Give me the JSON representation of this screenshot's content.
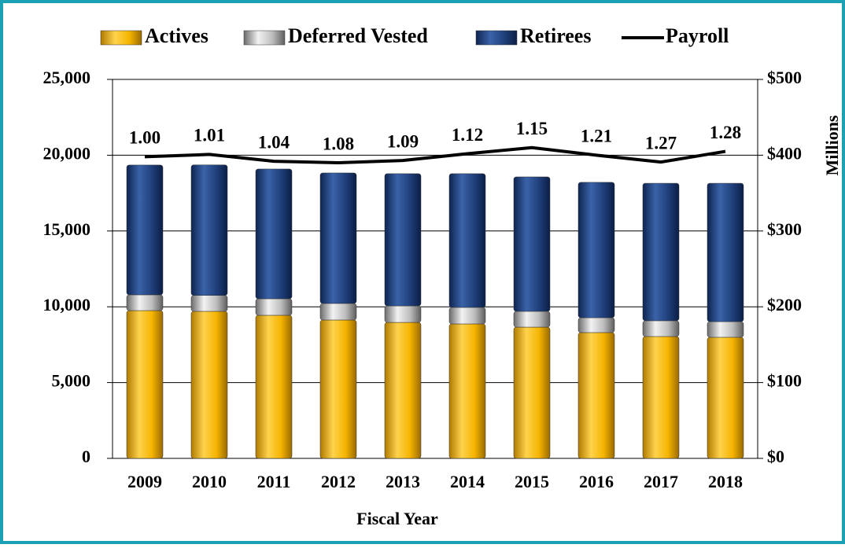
{
  "chart_data": {
    "type": "stacked-bar-line",
    "categories": [
      "2009",
      "2010",
      "2011",
      "2012",
      "2013",
      "2014",
      "2015",
      "2016",
      "2017",
      "2018"
    ],
    "series": [
      {
        "name": "Actives",
        "color": "#f5b400",
        "values": [
          9750,
          9700,
          9440,
          9130,
          8970,
          8870,
          8660,
          8300,
          8040,
          7990
        ]
      },
      {
        "name": "Deferred Vested",
        "color": "#a6a6a6",
        "values": [
          1040,
          1050,
          1090,
          1090,
          1090,
          1090,
          1040,
          980,
          1040,
          1030
        ]
      },
      {
        "name": "Retirees",
        "color": "#1f3f7a",
        "values": [
          8560,
          8610,
          8560,
          8610,
          8720,
          8820,
          8870,
          8930,
          9070,
          9130
        ]
      },
      {
        "name": "Payroll",
        "color": "#000000",
        "axis": "y2",
        "values": [
          398,
          401,
          392,
          390,
          393,
          402,
          410,
          400,
          391,
          405
        ]
      }
    ],
    "annotations": [
      "1.00",
      "1.01",
      "1.04",
      "1.08",
      "1.09",
      "1.12",
      "1.15",
      "1.21",
      "1.27",
      "1.28"
    ],
    "x_label": "Fiscal Year",
    "y2_label": "Millions",
    "ylim": [
      0,
      25000
    ],
    "yticks": [
      0,
      {
        "value": 5000,
        "label": "5,000"
      },
      {
        "value": 10000,
        "label": "10,000"
      },
      {
        "value": 15000,
        "label": "15,000"
      },
      {
        "value": 20000,
        "label": "20,000"
      },
      {
        "value": 25000,
        "label": "25,000"
      }
    ],
    "y2lim": [
      0,
      500
    ],
    "y2ticks": [
      {
        "value": 0,
        "label": "$0"
      },
      {
        "value": 100,
        "label": "$100"
      },
      {
        "value": 200,
        "label": "$200"
      },
      {
        "value": 300,
        "label": "$300"
      },
      {
        "value": 400,
        "label": "$400"
      },
      {
        "value": 500,
        "label": "$500"
      }
    ],
    "grid": true,
    "legend": "top"
  }
}
